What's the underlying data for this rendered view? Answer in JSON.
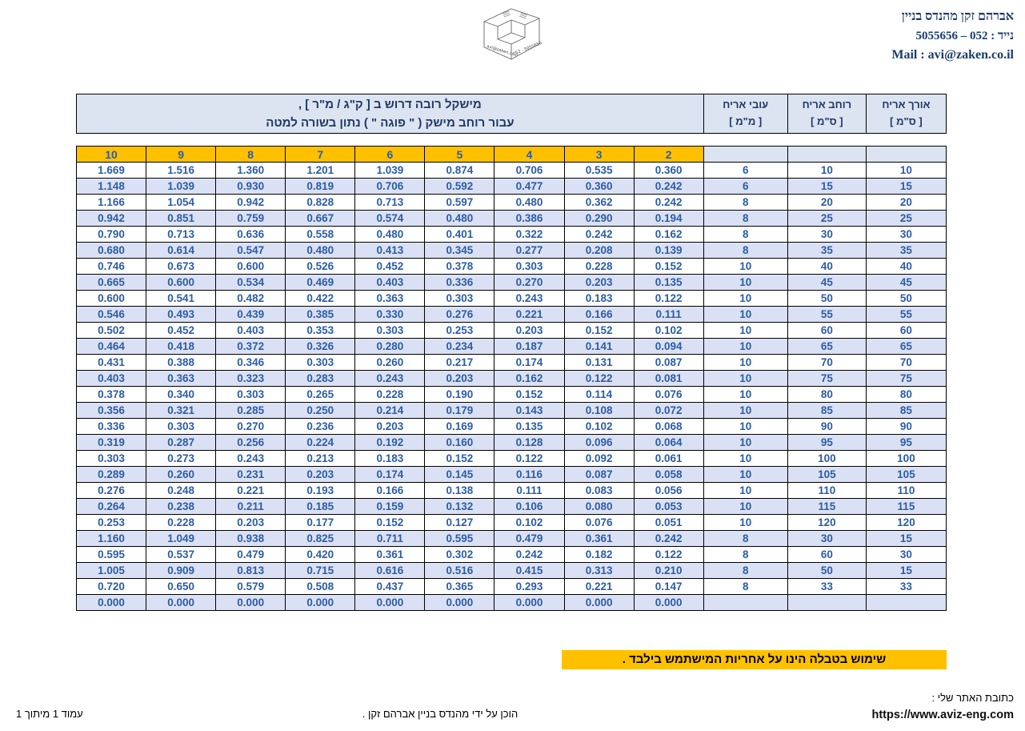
{
  "contact": {
    "name": "אברהם זקן מהנדס בניין",
    "phone": "נייד : 052 – 5055656",
    "email": "Mail : avi@zaken.co.il"
  },
  "logo": {
    "front_text": "avi@zaken.co.il",
    "side_text": "052 - 5055656"
  },
  "table": {
    "merged_header_line1": "מישקל רובה דרוש ב [ ק\"ג / מ\"ר ] ,",
    "merged_header_line2": "עבור רוחב מישק ( \" פוגה \" ) נתון בשורה למטה",
    "col_headers": [
      {
        "line1": "עובי אריח",
        "line2": "[ מ\"מ ]"
      },
      {
        "line1": "רוחב אריח",
        "line2": "[ ס\"מ ]"
      },
      {
        "line1": "אורך אריח",
        "line2": "[ ס\"מ ]"
      }
    ],
    "joint_widths": [
      "10",
      "9",
      "8",
      "7",
      "6",
      "5",
      "4",
      "3",
      "2"
    ],
    "rows": [
      {
        "weights": [
          "1.669",
          "1.516",
          "1.360",
          "1.201",
          "1.039",
          "0.874",
          "0.706",
          "0.535",
          "0.360"
        ],
        "thickness": "6",
        "width": "10",
        "length": "10"
      },
      {
        "weights": [
          "1.148",
          "1.039",
          "0.930",
          "0.819",
          "0.706",
          "0.592",
          "0.477",
          "0.360",
          "0.242"
        ],
        "thickness": "6",
        "width": "15",
        "length": "15"
      },
      {
        "weights": [
          "1.166",
          "1.054",
          "0.942",
          "0.828",
          "0.713",
          "0.597",
          "0.480",
          "0.362",
          "0.242"
        ],
        "thickness": "8",
        "width": "20",
        "length": "20"
      },
      {
        "weights": [
          "0.942",
          "0.851",
          "0.759",
          "0.667",
          "0.574",
          "0.480",
          "0.386",
          "0.290",
          "0.194"
        ],
        "thickness": "8",
        "width": "25",
        "length": "25"
      },
      {
        "weights": [
          "0.790",
          "0.713",
          "0.636",
          "0.558",
          "0.480",
          "0.401",
          "0.322",
          "0.242",
          "0.162"
        ],
        "thickness": "8",
        "width": "30",
        "length": "30"
      },
      {
        "weights": [
          "0.680",
          "0.614",
          "0.547",
          "0.480",
          "0.413",
          "0.345",
          "0.277",
          "0.208",
          "0.139"
        ],
        "thickness": "8",
        "width": "35",
        "length": "35"
      },
      {
        "weights": [
          "0.746",
          "0.673",
          "0.600",
          "0.526",
          "0.452",
          "0.378",
          "0.303",
          "0.228",
          "0.152"
        ],
        "thickness": "10",
        "width": "40",
        "length": "40"
      },
      {
        "weights": [
          "0.665",
          "0.600",
          "0.534",
          "0.469",
          "0.403",
          "0.336",
          "0.270",
          "0.203",
          "0.135"
        ],
        "thickness": "10",
        "width": "45",
        "length": "45"
      },
      {
        "weights": [
          "0.600",
          "0.541",
          "0.482",
          "0.422",
          "0.363",
          "0.303",
          "0.243",
          "0.183",
          "0.122"
        ],
        "thickness": "10",
        "width": "50",
        "length": "50"
      },
      {
        "weights": [
          "0.546",
          "0.493",
          "0.439",
          "0.385",
          "0.330",
          "0.276",
          "0.221",
          "0.166",
          "0.111"
        ],
        "thickness": "10",
        "width": "55",
        "length": "55"
      },
      {
        "weights": [
          "0.502",
          "0.452",
          "0.403",
          "0.353",
          "0.303",
          "0.253",
          "0.203",
          "0.152",
          "0.102"
        ],
        "thickness": "10",
        "width": "60",
        "length": "60"
      },
      {
        "weights": [
          "0.464",
          "0.418",
          "0.372",
          "0.326",
          "0.280",
          "0.234",
          "0.187",
          "0.141",
          "0.094"
        ],
        "thickness": "10",
        "width": "65",
        "length": "65"
      },
      {
        "weights": [
          "0.431",
          "0.388",
          "0.346",
          "0.303",
          "0.260",
          "0.217",
          "0.174",
          "0.131",
          "0.087"
        ],
        "thickness": "10",
        "width": "70",
        "length": "70"
      },
      {
        "weights": [
          "0.403",
          "0.363",
          "0.323",
          "0.283",
          "0.243",
          "0.203",
          "0.162",
          "0.122",
          "0.081"
        ],
        "thickness": "10",
        "width": "75",
        "length": "75"
      },
      {
        "weights": [
          "0.378",
          "0.340",
          "0.303",
          "0.265",
          "0.228",
          "0.190",
          "0.152",
          "0.114",
          "0.076"
        ],
        "thickness": "10",
        "width": "80",
        "length": "80"
      },
      {
        "weights": [
          "0.356",
          "0.321",
          "0.285",
          "0.250",
          "0.214",
          "0.179",
          "0.143",
          "0.108",
          "0.072"
        ],
        "thickness": "10",
        "width": "85",
        "length": "85"
      },
      {
        "weights": [
          "0.336",
          "0.303",
          "0.270",
          "0.236",
          "0.203",
          "0.169",
          "0.135",
          "0.102",
          "0.068"
        ],
        "thickness": "10",
        "width": "90",
        "length": "90"
      },
      {
        "weights": [
          "0.319",
          "0.287",
          "0.256",
          "0.224",
          "0.192",
          "0.160",
          "0.128",
          "0.096",
          "0.064"
        ],
        "thickness": "10",
        "width": "95",
        "length": "95"
      },
      {
        "weights": [
          "0.303",
          "0.273",
          "0.243",
          "0.213",
          "0.183",
          "0.152",
          "0.122",
          "0.092",
          "0.061"
        ],
        "thickness": "10",
        "width": "100",
        "length": "100"
      },
      {
        "weights": [
          "0.289",
          "0.260",
          "0.231",
          "0.203",
          "0.174",
          "0.145",
          "0.116",
          "0.087",
          "0.058"
        ],
        "thickness": "10",
        "width": "105",
        "length": "105"
      },
      {
        "weights": [
          "0.276",
          "0.248",
          "0.221",
          "0.193",
          "0.166",
          "0.138",
          "0.111",
          "0.083",
          "0.056"
        ],
        "thickness": "10",
        "width": "110",
        "length": "110"
      },
      {
        "weights": [
          "0.264",
          "0.238",
          "0.211",
          "0.185",
          "0.159",
          "0.132",
          "0.106",
          "0.080",
          "0.053"
        ],
        "thickness": "10",
        "width": "115",
        "length": "115"
      },
      {
        "weights": [
          "0.253",
          "0.228",
          "0.203",
          "0.177",
          "0.152",
          "0.127",
          "0.102",
          "0.076",
          "0.051"
        ],
        "thickness": "10",
        "width": "120",
        "length": "120"
      },
      {
        "weights": [
          "1.160",
          "1.049",
          "0.938",
          "0.825",
          "0.711",
          "0.595",
          "0.479",
          "0.361",
          "0.242"
        ],
        "thickness": "8",
        "width": "30",
        "length": "15"
      },
      {
        "weights": [
          "0.595",
          "0.537",
          "0.479",
          "0.420",
          "0.361",
          "0.302",
          "0.242",
          "0.182",
          "0.122"
        ],
        "thickness": "8",
        "width": "60",
        "length": "30"
      },
      {
        "weights": [
          "1.005",
          "0.909",
          "0.813",
          "0.715",
          "0.616",
          "0.516",
          "0.415",
          "0.313",
          "0.210"
        ],
        "thickness": "8",
        "width": "50",
        "length": "15"
      },
      {
        "weights": [
          "0.720",
          "0.650",
          "0.579",
          "0.508",
          "0.437",
          "0.365",
          "0.293",
          "0.221",
          "0.147"
        ],
        "thickness": "8",
        "width": "33",
        "length": "33"
      },
      {
        "weights": [
          "0.000",
          "0.000",
          "0.000",
          "0.000",
          "0.000",
          "0.000",
          "0.000",
          "0.000",
          "0.000"
        ],
        "thickness": "",
        "width": "",
        "length": ""
      }
    ]
  },
  "warning": "שימוש בטבלה הינו על אחריות המישתמש בילבד .",
  "footer": {
    "site_label": "כתובת האתר שלי :",
    "site_url": "https://www.aviz-eng.com",
    "prepared_by": "הוכן על ידי מהנדס בניין אברהם זקן .",
    "page_info": "עמוד 1 מיתוך 1"
  },
  "colors": {
    "accent_orange": "#ffc000",
    "header_bg": "#dce4f2",
    "row_alt_bg": "#dbe1f4",
    "number_blue": "#2a5caa",
    "navy": "#1f3864"
  }
}
